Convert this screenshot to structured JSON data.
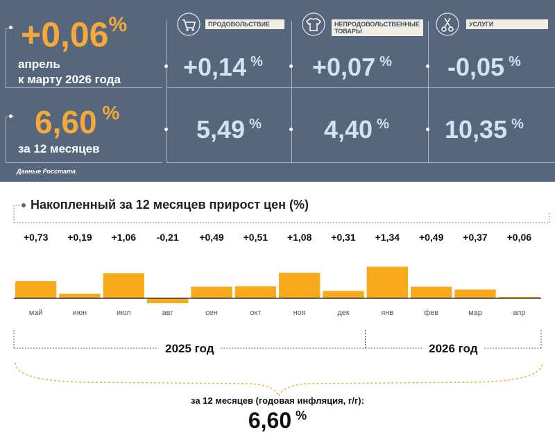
{
  "header": {
    "monthly_value": "+0,06",
    "monthly_pct": "%",
    "monthly_caption_1": "апрель",
    "monthly_caption_2": "к марту 2026 года",
    "annual_value": "6,60",
    "annual_pct": "%",
    "annual_caption": "за 12 месяцев",
    "source": "Данные Росстата"
  },
  "categories": [
    {
      "label": "ПРОДОВОЛЬСТВИЕ",
      "icon": "shopping-cart-icon",
      "monthly": "+0,14",
      "annual": "5,49"
    },
    {
      "label_1": "НЕПРОДОВОЛЬСТВЕННЫЕ",
      "label_2": "ТОВАРЫ",
      "icon": "shirt-icon",
      "monthly": "+0,07",
      "annual": "4,40"
    },
    {
      "label": "УСЛУГИ",
      "icon": "scissors-icon",
      "monthly": "-0,05",
      "annual": "10,35"
    }
  ],
  "pct_sign": "%",
  "colors": {
    "panel": "#56667d",
    "accent": "#f5a93b",
    "pale_blue": "#cfe3f4",
    "bar": "#f9aa1c"
  },
  "chart_data": {
    "type": "bar",
    "title": "Накопленный за 12 месяцев прирост цен (%)",
    "categories": [
      "май",
      "июн",
      "июл",
      "авг",
      "сен",
      "окт",
      "ноя",
      "дек",
      "янв",
      "фев",
      "мар",
      "апр"
    ],
    "values": [
      0.73,
      0.19,
      1.06,
      -0.21,
      0.49,
      0.51,
      1.08,
      0.31,
      1.34,
      0.49,
      0.37,
      0.06
    ],
    "value_labels": [
      "+0,73",
      "+0,19",
      "+1,06",
      "-0,21",
      "+0,49",
      "+0,51",
      "+1,08",
      "+0,31",
      "+1,34",
      "+0,49",
      "+0,37",
      "+0,06"
    ],
    "year_groups": [
      {
        "label": "2025 год",
        "months": 8
      },
      {
        "label": "2026 год",
        "months": 4
      }
    ],
    "summary_label": "за 12 месяцев (годовая инфляция, г/г):",
    "summary_value": "6,60",
    "summary_pct": "%"
  }
}
